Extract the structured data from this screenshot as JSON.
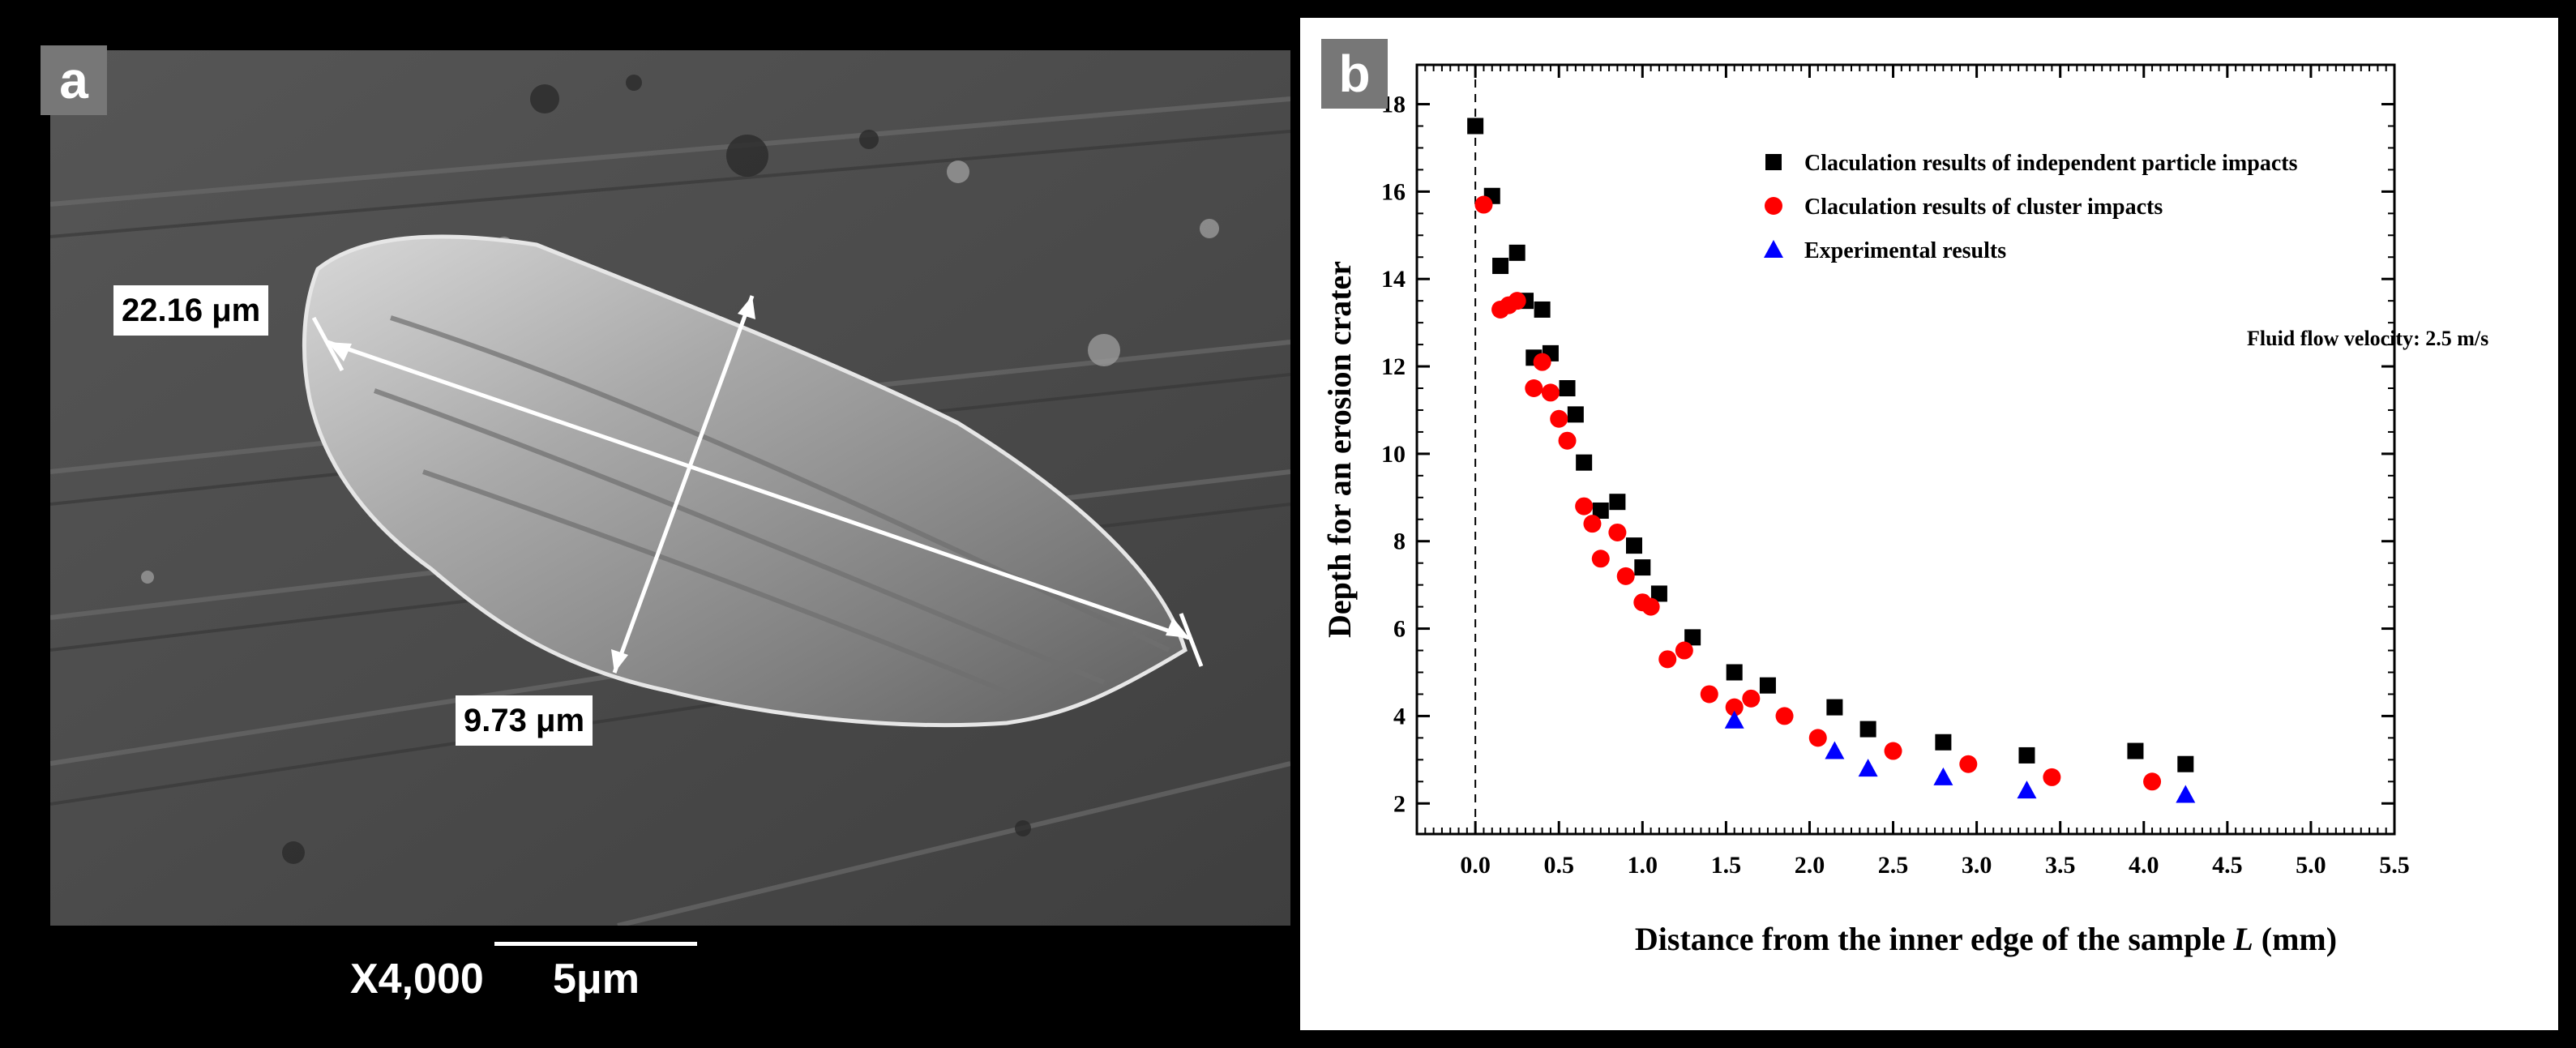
{
  "panel_a": {
    "label": "a",
    "measurements": {
      "length": "22.16 μm",
      "width": "9.73 μm"
    },
    "magnification": "X4,000",
    "scale_bar": "5μm"
  },
  "panel_b": {
    "label": "b",
    "annotation": "Fluid flow velocity: 2.5 m/s"
  },
  "chart_data": {
    "type": "scatter",
    "xlabel_main": "Distance from the inner edge of the sample ",
    "xlabel_var": "L",
    "xlabel_unit": " (mm)",
    "ylabel": "Depth for an erosion crater",
    "xlim": [
      -0.35,
      5.5
    ],
    "ylim": [
      1.3,
      18.9
    ],
    "xticks": [
      0.0,
      0.5,
      1.0,
      1.5,
      2.0,
      2.5,
      3.0,
      3.5,
      4.0,
      4.5,
      5.0,
      5.5
    ],
    "xtick_labels": [
      "0.0",
      "0.5",
      "1.0",
      "1.5",
      "2.0",
      "2.5",
      "3.0",
      "3.5",
      "4.0",
      "4.5",
      "5.0",
      "5.5"
    ],
    "yticks": [
      2,
      4,
      6,
      8,
      10,
      12,
      14,
      16,
      18
    ],
    "ytick_labels": [
      "2",
      "4",
      "6",
      "8",
      "10",
      "12",
      "14",
      "16",
      "18"
    ],
    "reference_line_x": 0.0,
    "legend_placement": "top-right",
    "series": [
      {
        "name": "Claculation results of independent particle impacts",
        "marker": "square",
        "color": "#000000",
        "points": [
          [
            0.0,
            17.5
          ],
          [
            0.1,
            15.9
          ],
          [
            0.15,
            14.3
          ],
          [
            0.25,
            14.6
          ],
          [
            0.3,
            13.5
          ],
          [
            0.4,
            13.3
          ],
          [
            0.35,
            12.2
          ],
          [
            0.45,
            12.3
          ],
          [
            0.55,
            11.5
          ],
          [
            0.6,
            10.9
          ],
          [
            0.65,
            9.8
          ],
          [
            0.75,
            8.7
          ],
          [
            0.85,
            8.9
          ],
          [
            0.95,
            7.9
          ],
          [
            1.0,
            7.4
          ],
          [
            1.1,
            6.8
          ],
          [
            1.3,
            5.8
          ],
          [
            1.55,
            5.0
          ],
          [
            1.75,
            4.7
          ],
          [
            2.15,
            4.2
          ],
          [
            2.35,
            3.7
          ],
          [
            2.8,
            3.4
          ],
          [
            3.3,
            3.1
          ],
          [
            3.95,
            3.2
          ],
          [
            4.25,
            2.9
          ]
        ]
      },
      {
        "name": "Claculation results of cluster impacts",
        "marker": "circle",
        "color": "#ff0000",
        "points": [
          [
            0.05,
            15.7
          ],
          [
            0.15,
            13.3
          ],
          [
            0.2,
            13.4
          ],
          [
            0.25,
            13.5
          ],
          [
            0.35,
            11.5
          ],
          [
            0.4,
            12.1
          ],
          [
            0.45,
            11.4
          ],
          [
            0.5,
            10.8
          ],
          [
            0.55,
            10.3
          ],
          [
            0.65,
            8.8
          ],
          [
            0.7,
            8.4
          ],
          [
            0.75,
            7.6
          ],
          [
            0.85,
            8.2
          ],
          [
            0.9,
            7.2
          ],
          [
            1.0,
            6.6
          ],
          [
            1.05,
            6.5
          ],
          [
            1.15,
            5.3
          ],
          [
            1.25,
            5.5
          ],
          [
            1.4,
            4.5
          ],
          [
            1.55,
            4.2
          ],
          [
            1.65,
            4.4
          ],
          [
            1.85,
            4.0
          ],
          [
            2.05,
            3.5
          ],
          [
            2.5,
            3.2
          ],
          [
            2.95,
            2.9
          ],
          [
            3.45,
            2.6
          ],
          [
            4.05,
            2.5
          ]
        ]
      },
      {
        "name": "Experimental results",
        "marker": "triangle",
        "color": "#0000ff",
        "points": [
          [
            1.55,
            3.9
          ],
          [
            2.15,
            3.2
          ],
          [
            2.35,
            2.8
          ],
          [
            2.8,
            2.6
          ],
          [
            3.3,
            2.3
          ],
          [
            4.25,
            2.2
          ]
        ]
      }
    ]
  }
}
